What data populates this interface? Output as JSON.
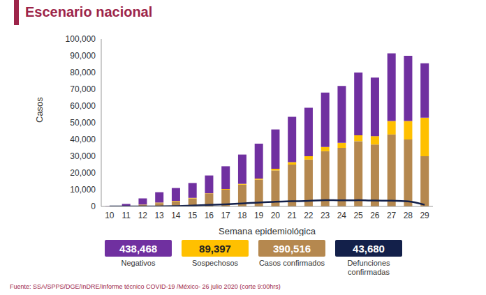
{
  "chart_data": {
    "type": "bar",
    "title": "Escenario nacional",
    "x_label": "Semana epidemiológica",
    "y_label": "Casos",
    "categories": [
      "10",
      "11",
      "12",
      "13",
      "14",
      "15",
      "16",
      "17",
      "18",
      "19",
      "20",
      "21",
      "22",
      "23",
      "24",
      "25",
      "26",
      "27",
      "28",
      "29"
    ],
    "series": [
      {
        "name": "Casos confirmados",
        "color": "#b5884f",
        "values": [
          50,
          200,
          900,
          2000,
          3000,
          4800,
          7500,
          10000,
          13000,
          16000,
          21500,
          25000,
          28000,
          33000,
          35000,
          39000,
          37000,
          43000,
          40000,
          30000
        ]
      },
      {
        "name": "Sospechosos",
        "color": "#ffc000",
        "values": [
          0,
          50,
          200,
          300,
          300,
          300,
          300,
          400,
          500,
          600,
          1000,
          1500,
          2000,
          2500,
          3000,
          3500,
          5000,
          8000,
          11000,
          23000
        ]
      },
      {
        "name": "Negativos",
        "color": "#7030a0",
        "values": [
          150,
          1250,
          3700,
          6200,
          7700,
          8900,
          10700,
          13600,
          17500,
          20900,
          23500,
          27000,
          29000,
          32500,
          34000,
          37500,
          35000,
          40500,
          39000,
          32500
        ]
      },
      {
        "name": "Defunciones confirmadas",
        "type": "line",
        "color": "#13204a",
        "values": [
          0,
          0,
          10,
          50,
          200,
          500,
          900,
          1300,
          1800,
          2300,
          2800,
          3100,
          3300,
          3800,
          3600,
          3700,
          3500,
          3400,
          3000,
          1000
        ]
      }
    ],
    "stacked": true,
    "grid": false,
    "ylim": [
      0,
      100000
    ],
    "yticks": [
      0,
      {
        "value": 10000,
        "label": "10,000"
      },
      {
        "value": 20000,
        "label": "20,000"
      },
      {
        "value": 30000,
        "label": "30,000"
      },
      {
        "value": 40000,
        "label": "40,000"
      },
      {
        "value": 50000,
        "label": "50,000"
      },
      {
        "value": 60000,
        "label": "60,000"
      },
      {
        "value": 70000,
        "label": "70,000"
      },
      {
        "value": 80000,
        "label": "80,000"
      },
      {
        "value": 90000,
        "label": "90,000"
      },
      {
        "value": 100000,
        "label": "100,000"
      }
    ]
  },
  "summary": [
    {
      "value": "438,468",
      "label": "Negativos",
      "color": "#7030a0"
    },
    {
      "value": "89,397",
      "label": "Sospechosos",
      "color": "#ffc000"
    },
    {
      "value": "390,516",
      "label": "Casos confirmados",
      "color": "#b5884f"
    },
    {
      "value": "43,680",
      "label": "Defunciones confirmadas",
      "color": "#13204a"
    }
  ],
  "source": "Fuente: SSA/SPPS/DGE/InDRE/Informe técnico COVID-19 /México- 26 julio 2020 (corte 9:00hrs)"
}
